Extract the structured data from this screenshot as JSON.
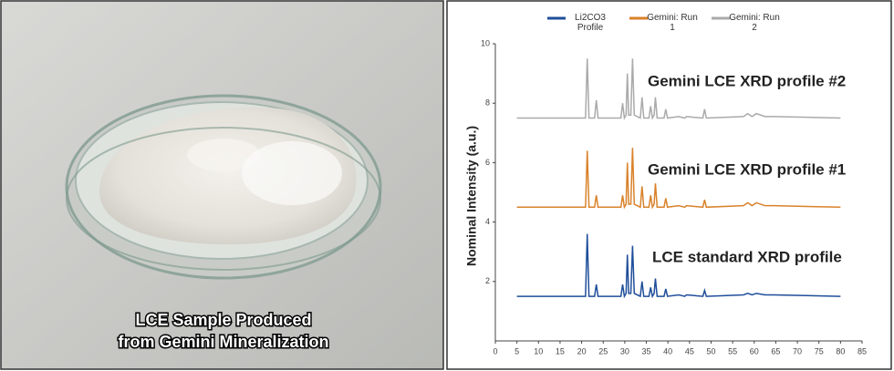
{
  "photo": {
    "caption_lines": [
      "LCE Sample Produced",
      "from Gemini Mineralization"
    ]
  },
  "chart_data": {
    "type": "line",
    "ylabel": "Nominal Intensity (a.u.)",
    "annotations": [
      "Gemini LCE XRD profile #2",
      "Gemini LCE XRD profile #1",
      "LCE standard XRD profile"
    ],
    "x": [
      5,
      20.9,
      21.3,
      21.7,
      23.0,
      23.4,
      23.8,
      29.1,
      29.5,
      29.9,
      30.3,
      30.6,
      30.9,
      31.4,
      31.8,
      32.2,
      33.6,
      34.0,
      34.4,
      35.6,
      36.0,
      36.4,
      36.8,
      37.1,
      37.5,
      39.1,
      39.5,
      39.9,
      42.5,
      43.9,
      44.3,
      48.1,
      48.5,
      48.9,
      57.5,
      58.5,
      59.5,
      60.5,
      62.5,
      64.5,
      80
    ],
    "series": [
      {
        "name": "Li2CO3 Profile",
        "color": "#1f4e9a",
        "values": [
          1.5,
          1.5,
          3.6,
          1.5,
          1.5,
          1.9,
          1.5,
          1.5,
          1.9,
          1.5,
          1.6,
          2.9,
          1.6,
          1.6,
          3.2,
          1.6,
          1.5,
          2.0,
          1.5,
          1.5,
          1.8,
          1.5,
          1.6,
          2.1,
          1.5,
          1.5,
          1.75,
          1.5,
          1.55,
          1.5,
          1.55,
          1.5,
          1.7,
          1.5,
          1.55,
          1.6,
          1.55,
          1.6,
          1.55,
          1.55,
          1.5
        ]
      },
      {
        "name": "Gemini: Run 1",
        "color": "#d9822b",
        "values": [
          4.5,
          4.5,
          6.4,
          4.5,
          4.5,
          4.9,
          4.5,
          4.5,
          4.9,
          4.5,
          4.6,
          6.0,
          4.6,
          4.6,
          6.5,
          4.6,
          4.5,
          5.2,
          4.5,
          4.5,
          4.9,
          4.5,
          4.6,
          5.3,
          4.5,
          4.5,
          4.8,
          4.5,
          4.55,
          4.5,
          4.55,
          4.5,
          4.75,
          4.5,
          4.55,
          4.65,
          4.55,
          4.65,
          4.55,
          4.55,
          4.5
        ]
      },
      {
        "name": "Gemini: Run 2",
        "color": "#aaaaaa",
        "values": [
          7.5,
          7.5,
          9.5,
          7.5,
          7.5,
          8.1,
          7.5,
          7.5,
          8.0,
          7.5,
          7.6,
          9.0,
          7.6,
          7.6,
          9.5,
          7.6,
          7.5,
          8.2,
          7.5,
          7.5,
          7.9,
          7.5,
          7.6,
          8.2,
          7.5,
          7.5,
          7.8,
          7.5,
          7.55,
          7.5,
          7.55,
          7.5,
          7.8,
          7.5,
          7.55,
          7.65,
          7.55,
          7.65,
          7.55,
          7.55,
          7.5
        ]
      }
    ],
    "xlim": [
      0,
      85
    ],
    "xticks": [
      0,
      5,
      10,
      15,
      20,
      25,
      30,
      35,
      40,
      45,
      50,
      55,
      60,
      65,
      70,
      75,
      80,
      85
    ],
    "ylim": [
      0,
      10
    ],
    "yticks": [
      2,
      4,
      6,
      8,
      10
    ],
    "grid": false
  }
}
